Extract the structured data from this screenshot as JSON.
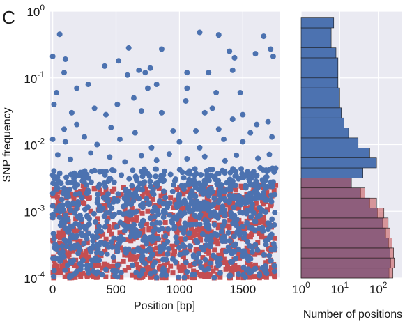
{
  "panel_label": "C",
  "colors": {
    "background": "#eaeaf2",
    "grid": "#ffffff",
    "blue": "#4c72b0",
    "red": "#c44e52",
    "red_bar": "#8c4a6e"
  },
  "chart_data": [
    {
      "type": "scatter",
      "xlabel": "Position [bp]",
      "ylabel": "SNP frequency",
      "xlim": [
        -20,
        1790
      ],
      "ylim": [
        0.0001,
        1
      ],
      "yscale": "log",
      "grid": true,
      "x_ticks": [
        {
          "v": 0,
          "label": "0"
        },
        {
          "v": 500,
          "label": "500"
        },
        {
          "v": 1000,
          "label": "1000"
        },
        {
          "v": 1500,
          "label": "1500"
        }
      ],
      "y_ticks": [
        {
          "v": 0.0001,
          "base": "10",
          "exp": "-4"
        },
        {
          "v": 0.001,
          "base": "10",
          "exp": "-3"
        },
        {
          "v": 0.01,
          "base": "10",
          "exp": "-2"
        },
        {
          "v": 0.1,
          "base": "10",
          "exp": "-1"
        },
        {
          "v": 1,
          "base": "10",
          "exp": "0"
        }
      ],
      "series": [
        {
          "marker": "square",
          "color": "#c44e52",
          "points": [
            [
              20,
              0.0018
            ],
            [
              60,
              0.0015
            ],
            [
              110,
              0.0021
            ],
            [
              150,
              0.0017
            ],
            [
              190,
              0.0019
            ],
            [
              240,
              0.0024
            ],
            [
              290,
              0.0016
            ],
            [
              330,
              0.0022
            ],
            [
              380,
              0.0018
            ],
            [
              420,
              0.0015
            ],
            [
              470,
              0.002
            ],
            [
              520,
              0.0017
            ],
            [
              560,
              0.0023
            ],
            [
              610,
              0.0016
            ],
            [
              650,
              0.0019
            ],
            [
              700,
              0.0021
            ],
            [
              750,
              0.0017
            ],
            [
              790,
              0.0015
            ],
            [
              840,
              0.0022
            ],
            [
              880,
              0.0019
            ],
            [
              930,
              0.0016
            ],
            [
              980,
              0.0021
            ],
            [
              1030,
              0.0018
            ],
            [
              1080,
              0.0024
            ],
            [
              1120,
              0.0017
            ],
            [
              1170,
              0.002
            ],
            [
              1220,
              0.0015
            ],
            [
              1260,
              0.0019
            ],
            [
              1310,
              0.0022
            ],
            [
              1350,
              0.0017
            ],
            [
              1400,
              0.002
            ],
            [
              1450,
              0.0016
            ],
            [
              1500,
              0.0023
            ],
            [
              1540,
              0.0018
            ],
            [
              1590,
              0.0021
            ],
            [
              1640,
              0.0016
            ],
            [
              1690,
              0.0019
            ],
            [
              1730,
              0.0017
            ],
            [
              40,
              0.0009
            ],
            [
              130,
              0.0011
            ],
            [
              210,
              0.0008
            ],
            [
              300,
              0.001
            ],
            [
              390,
              0.0012
            ],
            [
              480,
              0.0009
            ],
            [
              570,
              0.0011
            ],
            [
              660,
              0.0008
            ],
            [
              750,
              0.001
            ],
            [
              840,
              0.0012
            ],
            [
              930,
              0.0009
            ],
            [
              1020,
              0.0011
            ],
            [
              1110,
              0.0008
            ],
            [
              1200,
              0.001
            ],
            [
              1290,
              0.0012
            ],
            [
              1380,
              0.0009
            ],
            [
              1470,
              0.0011
            ],
            [
              1560,
              0.0008
            ],
            [
              1650,
              0.001
            ],
            [
              1720,
              0.0012
            ],
            [
              10,
              0.00045
            ],
            [
              90,
              0.0006
            ],
            [
              170,
              0.0005
            ],
            [
              260,
              0.00055
            ],
            [
              350,
              0.00042
            ],
            [
              440,
              0.0006
            ],
            [
              530,
              0.00048
            ],
            [
              620,
              0.00052
            ],
            [
              710,
              0.00044
            ],
            [
              800,
              0.0006
            ],
            [
              890,
              0.0005
            ],
            [
              980,
              0.00055
            ],
            [
              1070,
              0.00042
            ],
            [
              1160,
              0.0006
            ],
            [
              1250,
              0.00048
            ],
            [
              1340,
              0.00052
            ],
            [
              1430,
              0.00044
            ],
            [
              1520,
              0.0006
            ],
            [
              1610,
              0.0005
            ],
            [
              1700,
              0.00055
            ],
            [
              50,
              0.00025
            ],
            [
              140,
              0.0003
            ],
            [
              230,
              0.00022
            ],
            [
              320,
              0.00028
            ],
            [
              410,
              0.00025
            ],
            [
              500,
              0.0003
            ],
            [
              590,
              0.00022
            ],
            [
              680,
              0.00028
            ],
            [
              770,
              0.00025
            ],
            [
              860,
              0.0003
            ],
            [
              950,
              0.00022
            ],
            [
              1040,
              0.00028
            ],
            [
              1130,
              0.00025
            ],
            [
              1220,
              0.0003
            ],
            [
              1310,
              0.00022
            ],
            [
              1400,
              0.00028
            ],
            [
              1490,
              0.00025
            ],
            [
              1580,
              0.0003
            ],
            [
              1670,
              0.00022
            ],
            [
              1750,
              0.00028
            ],
            [
              30,
              0.00015
            ],
            [
              120,
              0.00013
            ],
            [
              210,
              0.00016
            ],
            [
              300,
              0.00012
            ],
            [
              390,
              0.00014
            ],
            [
              480,
              0.00015
            ],
            [
              570,
              0.00013
            ],
            [
              660,
              0.00016
            ],
            [
              750,
              0.00012
            ],
            [
              840,
              0.00014
            ],
            [
              930,
              0.00015
            ],
            [
              1020,
              0.00013
            ],
            [
              1110,
              0.00016
            ],
            [
              1200,
              0.00012
            ],
            [
              1290,
              0.00014
            ],
            [
              1380,
              0.00015
            ],
            [
              1470,
              0.00013
            ],
            [
              1560,
              0.00016
            ],
            [
              1650,
              0.00012
            ],
            [
              1740,
              0.00014
            ]
          ]
        },
        {
          "marker": "circle",
          "color": "#4c72b0",
          "points": [
            [
              55,
              0.45
            ],
            [
              1160,
              0.48
            ],
            [
              1310,
              0.44
            ],
            [
              1665,
              0.42
            ],
            [
              0,
              0.21
            ],
            [
              100,
              0.19
            ],
            [
              410,
              0.15
            ],
            [
              520,
              0.18
            ],
            [
              600,
              0.28
            ],
            [
              680,
              0.13
            ],
            [
              860,
              0.27
            ],
            [
              1395,
              0.25
            ],
            [
              1435,
              0.2
            ],
            [
              1600,
              0.23
            ],
            [
              1720,
              0.27
            ],
            [
              1740,
              0.21
            ],
            [
              90,
              0.12
            ],
            [
              590,
              0.11
            ],
            [
              730,
              0.12
            ],
            [
              770,
              0.14
            ],
            [
              1060,
              0.12
            ],
            [
              1230,
              0.12
            ],
            [
              1420,
              0.13
            ],
            [
              30,
              0.06
            ],
            [
              190,
              0.07
            ],
            [
              280,
              0.08
            ],
            [
              640,
              0.05
            ],
            [
              750,
              0.07
            ],
            [
              820,
              0.08
            ],
            [
              1060,
              0.07
            ],
            [
              1290,
              0.06
            ],
            [
              1480,
              0.06
            ],
            [
              10,
              0.04
            ],
            [
              150,
              0.03
            ],
            [
              330,
              0.035
            ],
            [
              420,
              0.028
            ],
            [
              510,
              0.04
            ],
            [
              700,
              0.032
            ],
            [
              860,
              0.03
            ],
            [
              1050,
              0.045
            ],
            [
              1200,
              0.03
            ],
            [
              1260,
              0.035
            ],
            [
              1420,
              0.024
            ],
            [
              1500,
              0.028
            ],
            [
              1610,
              0.02
            ],
            [
              1700,
              0.022
            ],
            [
              90,
              0.017
            ],
            [
              190,
              0.02
            ],
            [
              460,
              0.018
            ],
            [
              650,
              0.015
            ],
            [
              950,
              0.016
            ],
            [
              1130,
              0.016
            ],
            [
              1310,
              0.017
            ],
            [
              1560,
              0.015
            ],
            [
              0,
              0.012
            ],
            [
              100,
              0.011
            ],
            [
              250,
              0.013
            ],
            [
              350,
              0.01
            ],
            [
              530,
              0.012
            ],
            [
              780,
              0.009
            ],
            [
              1000,
              0.011
            ],
            [
              1160,
              0.009
            ],
            [
              1350,
              0.012
            ],
            [
              1500,
              0.011
            ],
            [
              1730,
              0.013
            ],
            [
              40,
              0.007
            ],
            [
              140,
              0.006
            ],
            [
              300,
              0.0075
            ],
            [
              450,
              0.0065
            ],
            [
              570,
              0.0055
            ],
            [
              700,
              0.0068
            ],
            [
              820,
              0.0058
            ],
            [
              920,
              0.0072
            ],
            [
              1060,
              0.0061
            ],
            [
              1200,
              0.0066
            ],
            [
              1360,
              0.0057
            ],
            [
              1450,
              0.0069
            ],
            [
              1620,
              0.0062
            ],
            [
              1710,
              0.0071
            ]
          ],
          "band": {
            "x_range": [
              0,
              1760
            ],
            "y_range": [
              0.0001,
              0.0045
            ],
            "count": 900,
            "seed": 7
          }
        }
      ]
    },
    {
      "type": "bar",
      "orientation": "horizontal",
      "xlabel": "Number of positions",
      "xscale": "log",
      "xlim": [
        1,
        400
      ],
      "ylim": [
        0.0001,
        1
      ],
      "yscale": "log",
      "grid": true,
      "x_ticks": [
        {
          "v": 1,
          "base": "10",
          "exp": "0"
        },
        {
          "v": 10,
          "base": "10",
          "exp": "1"
        },
        {
          "v": 100,
          "base": "10",
          "exp": "2"
        }
      ],
      "bins": [
        0.0001,
        0.000141,
        0.0002,
        0.000282,
        0.000398,
        0.000562,
        0.000794,
        0.00112,
        0.00158,
        0.00224,
        0.00316,
        0.00447,
        0.00631,
        0.00891,
        0.0126,
        0.0178,
        0.0251,
        0.0355,
        0.0501,
        0.0708,
        0.1,
        0.141,
        0.2,
        0.282,
        0.398,
        0.562,
        0.794
      ],
      "series": [
        {
          "name": "",
          "color": "#c44e52",
          "counts": [
            240,
            260,
            250,
            230,
            200,
            180,
            140,
            90,
            45,
            20,
            0,
            0,
            0,
            0,
            0,
            0,
            0,
            0,
            0,
            0,
            0,
            0,
            0,
            0,
            0,
            0
          ]
        },
        {
          "name": "",
          "color": "#4c72b0",
          "counts": [
            190,
            210,
            200,
            185,
            155,
            130,
            95,
            60,
            35,
            20,
            40,
            90,
            60,
            30,
            17,
            13,
            11,
            10,
            10,
            9,
            9,
            9,
            8,
            6,
            6,
            7
          ]
        }
      ]
    }
  ]
}
